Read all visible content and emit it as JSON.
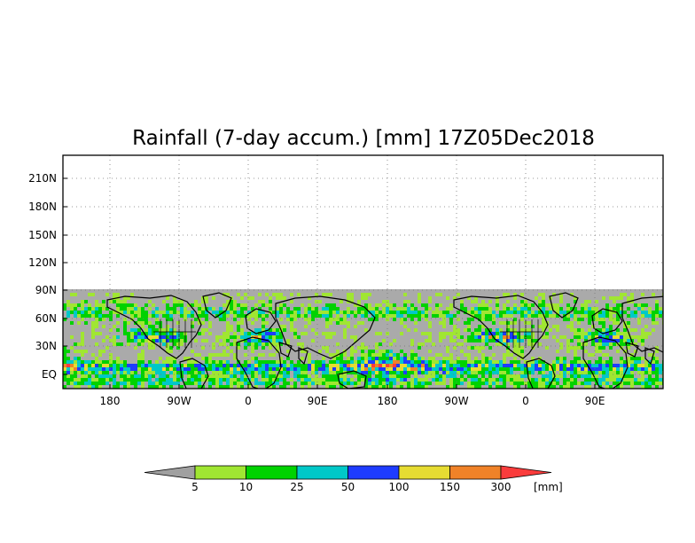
{
  "title": "Rainfall (7-day accum.) [mm] 17Z05Dec2018",
  "map": {
    "lat_labels": [
      "210N",
      "180N",
      "150N",
      "120N",
      "90N",
      "60N",
      "30N",
      "EQ"
    ],
    "lon_labels": [
      "180",
      "90W",
      "0",
      "90E",
      "180",
      "90W",
      "0",
      "90E"
    ],
    "no_data_color": "#aaaaaa",
    "grid": "dotted"
  },
  "colorbar": {
    "unit": "[mm]",
    "thresholds": [
      "5",
      "10",
      "25",
      "50",
      "100",
      "150",
      "300"
    ],
    "colors": [
      "#a0a0a0",
      "#a0e632",
      "#00d200",
      "#00c8c8",
      "#1e3cff",
      "#e6dc32",
      "#f08228",
      "#fa3c3c"
    ]
  }
}
